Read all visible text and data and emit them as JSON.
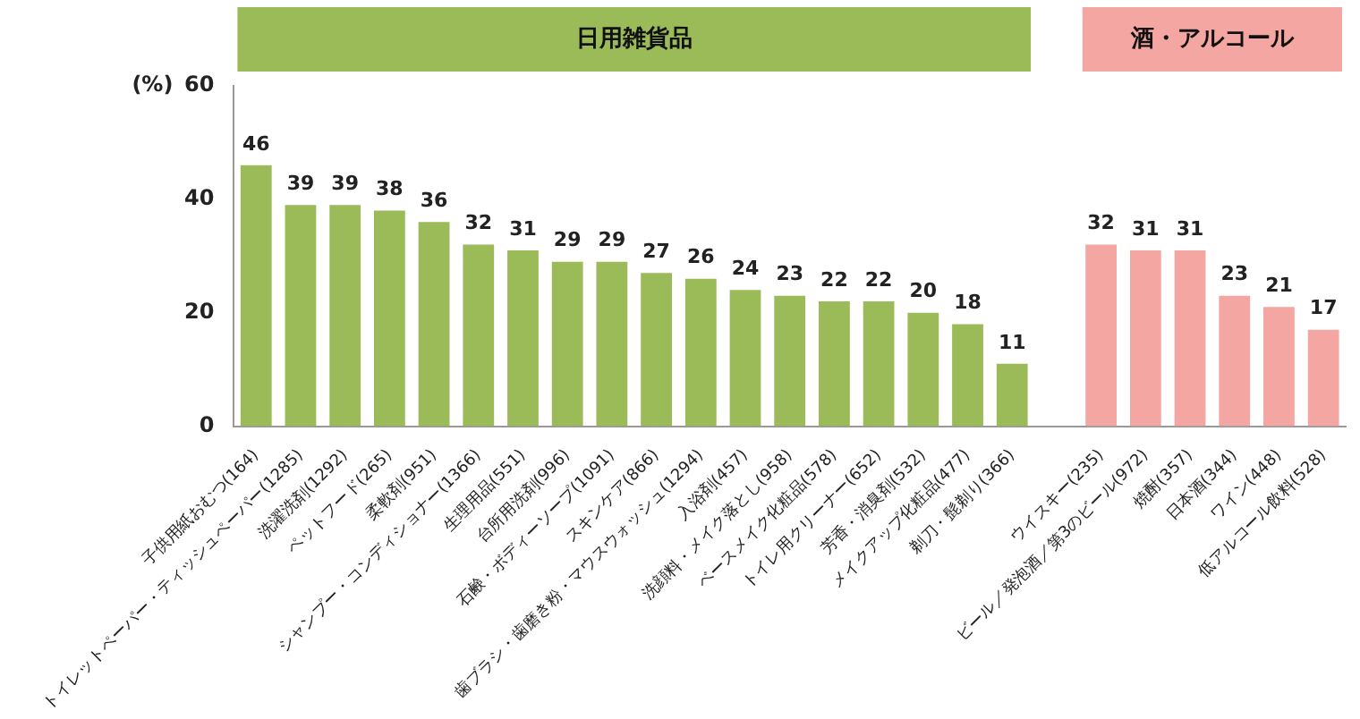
{
  "chart_data": {
    "type": "bar",
    "ylabel": "(%)",
    "categories": [
      "子供用紙おむつ(164)",
      "トイレットペーパー・ティッシュペーパー(1285)",
      "洗濯洗剤(1292)",
      "ペットフード(265)",
      "柔軟剤(951)",
      "シャンプー・コンディショナー(1366)",
      "生理用品(551)",
      "台所用洗剤(996)",
      "石鹸・ボディーソープ(1091)",
      "スキンケア(866)",
      "歯ブラシ・歯磨き粉・マウスウォッシュ(1294)",
      "入浴剤(457)",
      "洗顔料・メイク落とし(958)",
      "ベースメイク化粧品(578)",
      "トイレ用クリーナー(652)",
      "芳香・消臭剤(532)",
      "メイクアップ化粧品(477)",
      "剃刀・髭剃り(366)",
      null,
      "ウイスキー(235)",
      "ビール／発泡酒／第3のビール(972)",
      "焼酎(357)",
      "日本酒(344)",
      "ワイン(448)",
      "低アルコール飲料(528)"
    ],
    "values": [
      46,
      39,
      39,
      38,
      36,
      32,
      31,
      29,
      29,
      27,
      26,
      24,
      23,
      22,
      22,
      20,
      18,
      11,
      null,
      32,
      31,
      31,
      23,
      21,
      17
    ],
    "colors": [
      "#9bbb59",
      "#9bbb59",
      "#9bbb59",
      "#9bbb59",
      "#9bbb59",
      "#9bbb59",
      "#9bbb59",
      "#9bbb59",
      "#9bbb59",
      "#9bbb59",
      "#9bbb59",
      "#9bbb59",
      "#9bbb59",
      "#9bbb59",
      "#9bbb59",
      "#9bbb59",
      "#9bbb59",
      "#9bbb59",
      "#ffffff",
      "#f4a7a2",
      "#f4a7a2",
      "#f4a7a2",
      "#f4a7a2",
      "#f4a7a2",
      "#f4a7a2"
    ],
    "ylim": [
      0,
      60
    ],
    "yticks": [
      0,
      20,
      40,
      60
    ],
    "grid": false,
    "data_labels": true,
    "legend": false,
    "annotations": [
      "日用雑貨品",
      "酒・アルコール"
    ]
  }
}
